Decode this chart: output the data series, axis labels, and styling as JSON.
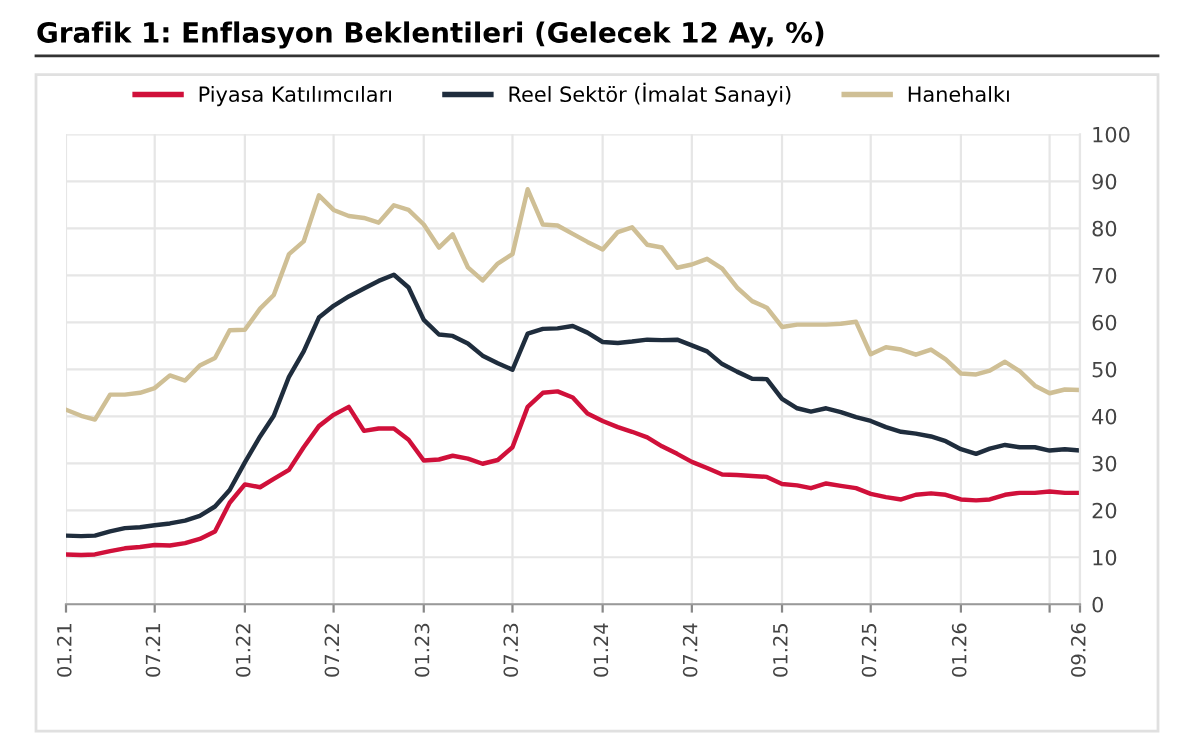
{
  "chart_data": {
    "type": "line",
    "title": "Grafik 1: Enflasyon Beklentileri (Gelecek 12 Ay, %)",
    "x": [
      "2021-01",
      "2021-02",
      "2021-03",
      "2021-04",
      "2021-05",
      "2021-06",
      "2021-07",
      "2021-08",
      "2021-09",
      "2021-10",
      "2021-11",
      "2021-12",
      "2022-01",
      "2022-02",
      "2022-03",
      "2022-04",
      "2022-05",
      "2022-06",
      "2022-07",
      "2022-08",
      "2022-09",
      "2022-10",
      "2022-11",
      "2022-12",
      "2023-01",
      "2023-02",
      "2023-03",
      "2023-04",
      "2023-05",
      "2023-06",
      "2023-07",
      "2023-08",
      "2023-09",
      "2023-10",
      "2023-11",
      "2023-12",
      "2024-01",
      "2024-02",
      "2024-03",
      "2024-04",
      "2024-05",
      "2024-06",
      "2024-07",
      "2024-08",
      "2024-09",
      "2024-10",
      "2024-11",
      "2024-12",
      "2025-01",
      "2025-02",
      "2025-03",
      "2025-04",
      "2025-05",
      "2025-06",
      "2025-07",
      "2025-08",
      "2025-09",
      "2025-10",
      "2025-11",
      "2025-12",
      "2026-01",
      "2026-02",
      "2026-03",
      "2026-04",
      "2026-05",
      "2026-06",
      "2026-07",
      "2026-08",
      "2026-09"
    ],
    "series": [
      {
        "name": "Piyasa Katılımcıları",
        "color": "#d0103a",
        "values": [
          10.6,
          10.5,
          10.6,
          11.3,
          11.9,
          12.2,
          12.6,
          12.5,
          13.0,
          13.9,
          15.5,
          21.6,
          25.5,
          24.9,
          26.7,
          28.6,
          33.4,
          37.9,
          40.3,
          42.0,
          36.9,
          37.4,
          37.4,
          35.0,
          30.6,
          30.8,
          31.6,
          31.0,
          29.9,
          30.7,
          33.4,
          42.0,
          45.0,
          45.3,
          44.0,
          40.6,
          39.0,
          37.7,
          36.7,
          35.5,
          33.6,
          32.0,
          30.3,
          29.0,
          27.6,
          27.5,
          27.3,
          27.1,
          25.6,
          25.3,
          24.7,
          25.7,
          25.2,
          24.7,
          23.5,
          22.8,
          22.3,
          23.3,
          23.6,
          23.3,
          22.3,
          22.1,
          22.3,
          23.3,
          23.7,
          23.7,
          24.0,
          23.7,
          23.7
        ]
      },
      {
        "name": "Reel Sektör (İmalat Sanayi)",
        "color": "#1f2d3d",
        "values": [
          14.6,
          14.5,
          14.6,
          15.5,
          16.2,
          16.4,
          16.8,
          17.2,
          17.8,
          18.8,
          20.8,
          24.3,
          30.2,
          35.7,
          40.1,
          48.4,
          53.8,
          61.0,
          63.5,
          65.5,
          67.2,
          68.8,
          70.1,
          67.4,
          60.5,
          57.4,
          57.1,
          55.5,
          52.9,
          51.3,
          49.9,
          57.6,
          58.6,
          58.7,
          59.2,
          57.8,
          55.8,
          55.6,
          55.9,
          56.3,
          56.2,
          56.3,
          55.1,
          53.8,
          51.1,
          49.5,
          48.0,
          47.9,
          43.7,
          41.7,
          41.0,
          41.7,
          40.9,
          39.8,
          39.0,
          37.7,
          36.7,
          36.3,
          35.7,
          34.7,
          33.0,
          32.0,
          33.1,
          33.9,
          33.4,
          33.4,
          32.7,
          33.0,
          32.7
        ]
      },
      {
        "name": "Hanehalkı",
        "color": "#cfbf95",
        "values": [
          41.4,
          40.1,
          39.3,
          44.6,
          44.6,
          45.0,
          46.0,
          48.7,
          47.6,
          50.8,
          52.4,
          58.3,
          58.4,
          62.9,
          65.8,
          74.5,
          77.2,
          87.0,
          83.9,
          82.6,
          82.2,
          81.2,
          84.9,
          83.9,
          80.8,
          75.9,
          78.7,
          71.7,
          68.9,
          72.5,
          74.5,
          88.3,
          80.8,
          80.6,
          78.8,
          77.1,
          75.5,
          79.2,
          80.2,
          76.5,
          75.9,
          71.6,
          72.3,
          73.5,
          71.4,
          67.4,
          64.5,
          63.1,
          59.0,
          59.5,
          59.5,
          59.5,
          59.7,
          60.1,
          53.2,
          54.7,
          54.2,
          53.1,
          54.2,
          52.1,
          49.1,
          48.9,
          49.7,
          51.6,
          49.6,
          46.5,
          44.9,
          45.7,
          45.6
        ]
      }
    ],
    "xlim": [
      "2021-01",
      "2026-09"
    ],
    "xticks": [
      {
        "value": "2021-01",
        "label": "01.21"
      },
      {
        "value": "2021-07",
        "label": "07.21"
      },
      {
        "value": "2022-01",
        "label": "01.22"
      },
      {
        "value": "2022-07",
        "label": "07.22"
      },
      {
        "value": "2023-01",
        "label": "01.23"
      },
      {
        "value": "2023-07",
        "label": "07.23"
      },
      {
        "value": "2024-01",
        "label": "01.24"
      },
      {
        "value": "2024-07",
        "label": "07.24"
      },
      {
        "value": "2025-01",
        "label": "01.25"
      },
      {
        "value": "2025-07",
        "label": "07.25"
      },
      {
        "value": "2026-01",
        "label": "01.26"
      },
      {
        "value": "2026-07",
        "label": null
      },
      {
        "value": "2026-09",
        "label": "09.26"
      }
    ],
    "ylim": [
      0,
      100
    ],
    "yticks": [
      0,
      10,
      20,
      30,
      40,
      50,
      60,
      70,
      80,
      90,
      100
    ],
    "grid": true,
    "legend": "top",
    "marker": "none",
    "line_style": "solid"
  }
}
